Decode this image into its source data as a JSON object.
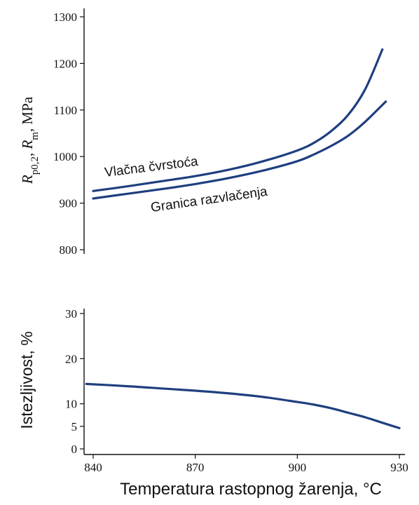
{
  "colors": {
    "series": "#1f3f7f",
    "axis": "#111111"
  },
  "chart_data": [
    {
      "type": "line",
      "xlabel": "Temperatura rastopnog žarenja, °C",
      "ylabel_parts": [
        {
          "text": "R",
          "style": "italic"
        },
        {
          "text": "p0,2",
          "style": "sub"
        },
        {
          "text": ", ",
          "style": "normal"
        },
        {
          "text": "R",
          "style": "italic"
        },
        {
          "text": "m",
          "style": "sub"
        },
        {
          "text": ", MPa",
          "style": "normal"
        }
      ],
      "xlim": [
        836,
        934
      ],
      "ylim": [
        770,
        1305
      ],
      "yticks": [
        "800",
        "900",
        "1000",
        "1100",
        "1200",
        "1300"
      ],
      "series": [
        {
          "name": "Vlačna čvrstoća",
          "points": [
            [
              840,
              926
            ],
            [
              850,
              936
            ],
            [
              860,
              947
            ],
            [
              870,
              958
            ],
            [
              880,
              972
            ],
            [
              890,
              990
            ],
            [
              900,
              1013
            ],
            [
              905,
              1030
            ],
            [
              910,
              1055
            ],
            [
              915,
              1090
            ],
            [
              920,
              1145
            ],
            [
              925,
              1230
            ]
          ]
        },
        {
          "name": "Granica razvlačenja",
          "points": [
            [
              840,
              910
            ],
            [
              850,
              920
            ],
            [
              860,
              930
            ],
            [
              870,
              941
            ],
            [
              880,
              954
            ],
            [
              890,
              970
            ],
            [
              900,
              990
            ],
            [
              905,
              1005
            ],
            [
              910,
              1023
            ],
            [
              915,
              1045
            ],
            [
              920,
              1075
            ],
            [
              926,
              1118
            ]
          ]
        }
      ]
    },
    {
      "type": "line",
      "xlabel": "Temperatura rastopnog žarenja, °C",
      "ylabel": "Istezljivost, %",
      "xlim": [
        836,
        934
      ],
      "xticks": [
        "840",
        "870",
        "900",
        "930"
      ],
      "ylim": [
        0,
        32
      ],
      "yticks": [
        "0",
        "5",
        "10",
        "20",
        "30"
      ],
      "ytick_values": [
        0,
        5,
        10,
        20,
        30
      ],
      "series": [
        {
          "name": "",
          "points": [
            [
              838,
              14.4
            ],
            [
              850,
              13.9
            ],
            [
              860,
              13.4
            ],
            [
              870,
              12.9
            ],
            [
              880,
              12.3
            ],
            [
              890,
              11.5
            ],
            [
              900,
              10.4
            ],
            [
              905,
              9.8
            ],
            [
              910,
              9.0
            ],
            [
              915,
              8.0
            ],
            [
              920,
              7.0
            ],
            [
              925,
              5.8
            ],
            [
              930,
              4.6
            ]
          ]
        }
      ]
    }
  ]
}
